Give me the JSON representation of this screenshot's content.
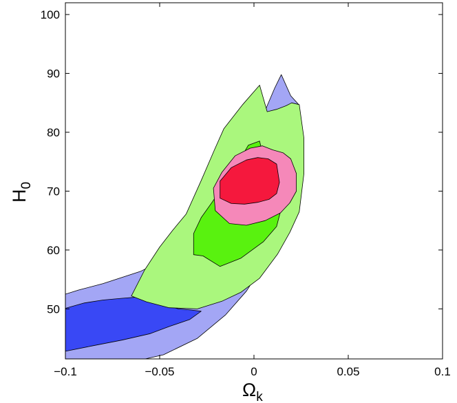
{
  "chart_data": {
    "type": "contour",
    "xlabel": "Ω",
    "xlabel_sub": "k",
    "ylabel": "H",
    "ylabel_sub": "0",
    "xlim": [
      -0.1,
      0.1
    ],
    "ylim": [
      41.5,
      102
    ],
    "xticks": [
      -0.1,
      -0.05,
      0,
      0.05,
      0.1
    ],
    "xtick_labels": [
      "−0.1",
      "−0.05",
      "0",
      "0.05",
      "0.1"
    ],
    "yticks": [
      50,
      60,
      70,
      80,
      90,
      100
    ],
    "ytick_labels": [
      "50",
      "60",
      "70",
      "80",
      "90",
      "100"
    ],
    "grid": false,
    "regions": [
      {
        "fill": "#a3a6f5",
        "points": [
          [
            -0.1,
            52.5
          ],
          [
            -0.093,
            53.2
          ],
          [
            -0.08,
            54.3
          ],
          [
            -0.06,
            56.4
          ],
          [
            -0.05,
            58
          ],
          [
            -0.042,
            59.6
          ],
          [
            -0.034,
            62
          ],
          [
            -0.024,
            65.6
          ],
          [
            -0.016,
            69.8
          ],
          [
            -0.01,
            74.5
          ],
          [
            -0.002,
            79
          ],
          [
            0.005,
            83
          ],
          [
            0.011,
            87.5
          ],
          [
            0.0145,
            89.8
          ],
          [
            0.0195,
            86.2
          ],
          [
            0.024,
            84.6
          ],
          [
            0.025,
            80
          ],
          [
            0.024,
            73
          ],
          [
            0.018,
            67
          ],
          [
            0.012,
            61.8
          ],
          [
            0.004,
            57
          ],
          [
            -0.004,
            53
          ],
          [
            -0.015,
            49
          ],
          [
            -0.03,
            45
          ],
          [
            -0.048,
            42.2
          ],
          [
            -0.07,
            40.6
          ],
          [
            -0.1,
            40.8
          ]
        ]
      },
      {
        "fill": "#3948f5",
        "points": [
          [
            -0.1,
            50.1
          ],
          [
            -0.09,
            51
          ],
          [
            -0.08,
            51.5
          ],
          [
            -0.07,
            51.8
          ],
          [
            -0.062,
            52
          ],
          [
            -0.048,
            50.7
          ],
          [
            -0.04,
            50
          ],
          [
            -0.033,
            49.8
          ],
          [
            -0.028,
            49.6
          ],
          [
            -0.034,
            48.2
          ],
          [
            -0.045,
            47
          ],
          [
            -0.055,
            45.8
          ],
          [
            -0.07,
            44.7
          ],
          [
            -0.086,
            43.7
          ],
          [
            -0.1,
            42.8
          ]
        ]
      },
      {
        "fill": "#aaf77d",
        "points": [
          [
            -0.065,
            52.2
          ],
          [
            -0.058,
            56.6
          ],
          [
            -0.05,
            60.5
          ],
          [
            -0.043,
            63.4
          ],
          [
            -0.036,
            66.1
          ],
          [
            -0.028,
            71.8
          ],
          [
            -0.021,
            77
          ],
          [
            -0.016,
            80.6
          ],
          [
            -0.006,
            84.7
          ],
          [
            0.003,
            88
          ],
          [
            0.007,
            83.5
          ],
          [
            0.012,
            83.9
          ],
          [
            0.017,
            84.5
          ],
          [
            0.02,
            85
          ],
          [
            0.024,
            84.7
          ],
          [
            0.0265,
            79
          ],
          [
            0.0265,
            73
          ],
          [
            0.024,
            66.5
          ],
          [
            0.019,
            63
          ],
          [
            0.0125,
            59.3
          ],
          [
            0.003,
            55.2
          ],
          [
            -0.007,
            52.8
          ],
          [
            -0.017,
            51.3
          ],
          [
            -0.03,
            50
          ],
          [
            -0.045,
            50.2
          ],
          [
            -0.057,
            51.2
          ]
        ]
      },
      {
        "fill": "#59f20f",
        "points": [
          [
            -0.032,
            59.2
          ],
          [
            -0.032,
            62.8
          ],
          [
            -0.028,
            65.5
          ],
          [
            -0.022,
            68.2
          ],
          [
            -0.01,
            74
          ],
          [
            -0.003,
            77.8
          ],
          [
            0.003,
            78.5
          ],
          [
            0.006,
            74.5
          ],
          [
            0.01,
            69.5
          ],
          [
            0.014,
            66.5
          ],
          [
            0.012,
            64
          ],
          [
            0.005,
            61.4
          ],
          [
            -0.007,
            58.6
          ],
          [
            -0.018,
            57.2
          ],
          [
            -0.027,
            59
          ]
        ]
      },
      {
        "fill": "#f588b9",
        "points": [
          [
            -0.0205,
            66.7
          ],
          [
            -0.0215,
            70.5
          ],
          [
            -0.017,
            73.2
          ],
          [
            -0.01,
            76
          ],
          [
            -0.002,
            77.3
          ],
          [
            0.0045,
            77.7
          ],
          [
            0.01,
            77
          ],
          [
            0.0155,
            76.5
          ],
          [
            0.0195,
            75.5
          ],
          [
            0.0225,
            73
          ],
          [
            0.0225,
            70
          ],
          [
            0.019,
            68
          ],
          [
            0.014,
            66.3
          ],
          [
            0.006,
            65
          ],
          [
            -0.004,
            64.2
          ],
          [
            -0.013,
            64.5
          ]
        ]
      },
      {
        "fill": "#f5183d",
        "points": [
          [
            -0.018,
            68.8
          ],
          [
            -0.018,
            71.7
          ],
          [
            -0.012,
            74
          ],
          [
            -0.004,
            75.3
          ],
          [
            0.002,
            75.7
          ],
          [
            0.0075,
            75.5
          ],
          [
            0.012,
            74.6
          ],
          [
            0.0135,
            71.5
          ],
          [
            0.012,
            69.6
          ],
          [
            0.008,
            68.6
          ],
          [
            0.002,
            68.1
          ],
          [
            -0.005,
            67.8
          ],
          [
            -0.012,
            67.9
          ]
        ]
      }
    ]
  }
}
